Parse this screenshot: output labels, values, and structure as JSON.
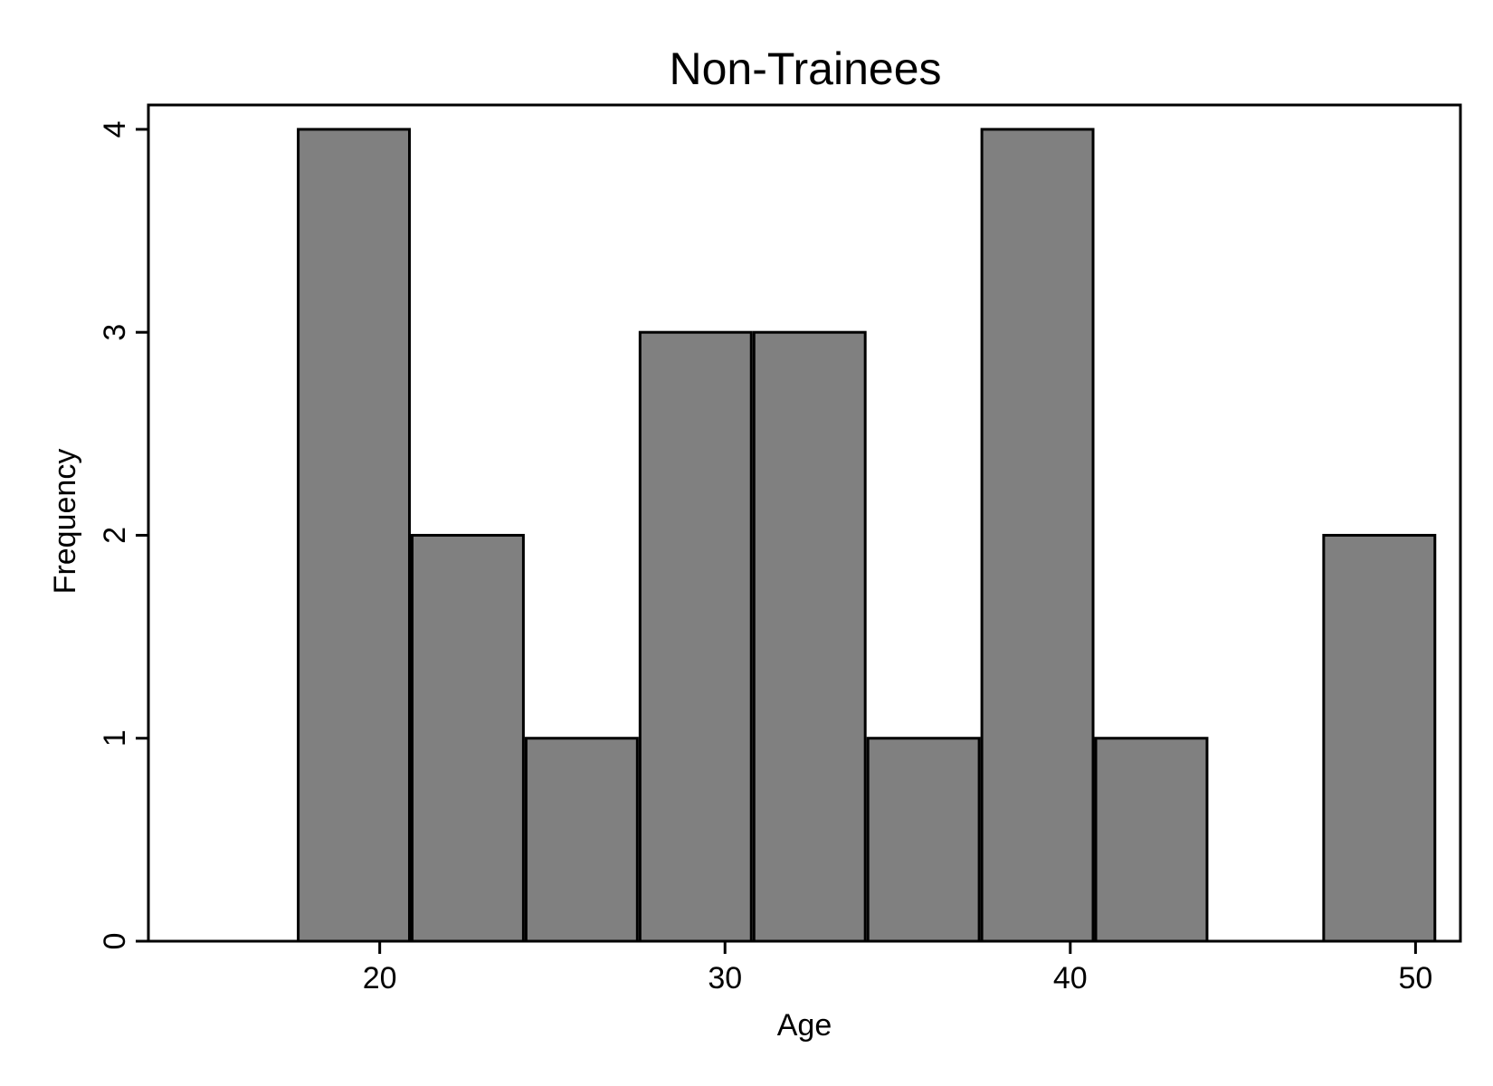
{
  "chart_data": {
    "type": "bar",
    "title": "Non-Trainees",
    "xlabel": "Age",
    "ylabel": "Frequency",
    "bin_edges": [
      17.6,
      20.9,
      24.2,
      27.5,
      30.8,
      34.1,
      37.4,
      40.7,
      44.0,
      47.3,
      50.6
    ],
    "values": [
      4,
      2,
      1,
      3,
      3,
      1,
      4,
      1,
      0,
      2
    ],
    "xlim": [
      13.3,
      51.3
    ],
    "ylim": [
      0,
      4.12
    ],
    "x_ticks": [
      20,
      30,
      40,
      50
    ],
    "y_ticks": [
      0,
      1,
      2,
      3,
      4
    ],
    "grid": false,
    "legend": "none",
    "colors": {
      "bar_fill": "#808080",
      "bar_stroke": "#000000",
      "axis": "#000000",
      "background": "#ffffff"
    }
  }
}
